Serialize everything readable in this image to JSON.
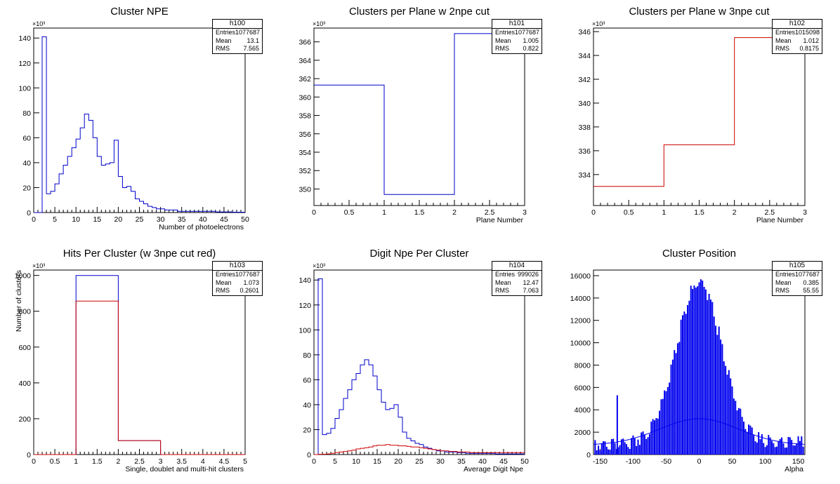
{
  "chart_data": [
    {
      "type": "histogram",
      "title": "Cluster NPE",
      "xlabel": "Number of photoelectrons",
      "ylabel": "",
      "xlim": [
        0,
        50
      ],
      "ylim": [
        0,
        148
      ],
      "xticks": [
        0,
        5,
        10,
        15,
        20,
        25,
        30,
        35,
        40,
        45,
        50
      ],
      "yticks": [
        0,
        20,
        40,
        60,
        80,
        100,
        120,
        140
      ],
      "exponent": "×10³",
      "stats": {
        "name": "h100",
        "rows": [
          [
            "Entries",
            "1077687"
          ],
          [
            "Mean",
            "13.1"
          ],
          [
            "RMS",
            "7.565"
          ]
        ]
      },
      "series": [
        {
          "color": "#0000cc",
          "bin_width": 1,
          "x0": 0,
          "values": [
            0,
            0,
            141,
            15,
            17,
            23,
            31,
            38,
            45,
            52,
            59,
            68,
            79,
            74,
            60,
            45,
            38,
            39,
            40,
            58,
            29,
            20,
            21,
            17,
            11,
            9,
            7,
            5,
            4,
            3,
            3,
            2,
            2,
            2,
            1,
            1,
            1,
            1,
            1,
            1,
            1,
            1,
            1,
            0.5,
            0.5,
            0.5,
            0.5,
            0.3,
            0.3,
            0.3
          ]
        }
      ]
    },
    {
      "type": "histogram",
      "title": "Clusters per Plane w 2npe cut",
      "xlabel": "Plane Number",
      "ylabel": "",
      "xlim": [
        0,
        3
      ],
      "ylim": [
        348.2,
        367.5
      ],
      "xticks": [
        0,
        0.5,
        1,
        1.5,
        2,
        2.5,
        3
      ],
      "yticks": [
        350,
        352,
        354,
        356,
        358,
        360,
        362,
        364,
        366
      ],
      "exponent": "×10³",
      "stats": {
        "name": "h101",
        "rows": [
          [
            "Entries",
            "1077687"
          ],
          [
            "Mean",
            "1.005"
          ],
          [
            "RMS",
            "0.822"
          ]
        ]
      },
      "series": [
        {
          "color": "#0000cc",
          "bin_width": 1,
          "x0": 0,
          "values": [
            361.3,
            349.4,
            366.9
          ]
        }
      ]
    },
    {
      "type": "histogram",
      "title": "Clusters per Plane w 3npe cut",
      "xlabel": "Plane Number",
      "ylabel": "",
      "xlim": [
        0,
        3
      ],
      "ylim": [
        331.4,
        346.3
      ],
      "xticks": [
        0,
        0.5,
        1,
        1.5,
        2,
        2.5,
        3
      ],
      "yticks": [
        334,
        336,
        338,
        340,
        342,
        344,
        346
      ],
      "exponent": "×10³",
      "stats": {
        "name": "h102",
        "rows": [
          [
            "Entries",
            "1015098"
          ],
          [
            "Mean",
            "1.012"
          ],
          [
            "RMS",
            "0.8175"
          ]
        ]
      },
      "series": [
        {
          "color": "#cc0000",
          "bin_width": 1,
          "x0": 0,
          "values": [
            333.0,
            336.5,
            345.5
          ]
        }
      ]
    },
    {
      "type": "histogram",
      "title": "Hits Per Cluster (w 3npe cut red)",
      "xlabel": "Single, doublet and multi-hit clusters",
      "ylabel": "Number of clusters",
      "xlim": [
        0,
        5
      ],
      "ylim": [
        0,
        1030
      ],
      "xticks": [
        0,
        0.5,
        1,
        1.5,
        2,
        2.5,
        3,
        3.5,
        4,
        4.5,
        5
      ],
      "yticks": [
        0,
        200,
        400,
        600,
        800,
        1000
      ],
      "exponent": "×10³",
      "stats": {
        "name": "h103",
        "rows": [
          [
            "Entries",
            "1077687"
          ],
          [
            "Mean",
            "1.073"
          ],
          [
            "RMS",
            "0.2601"
          ]
        ]
      },
      "series": [
        {
          "color": "#0000cc",
          "bin_width": 1,
          "x0": 0,
          "values": [
            0,
            1000,
            78,
            0,
            0
          ]
        },
        {
          "color": "#cc0000",
          "bin_width": 1,
          "x0": 0,
          "values": [
            0,
            857,
            78,
            0,
            0
          ]
        }
      ]
    },
    {
      "type": "histogram",
      "title": "Digit Npe Per Cluster",
      "xlabel": "Average Digit Npe",
      "ylabel": "",
      "xlim": [
        0,
        50
      ],
      "ylim": [
        0,
        148
      ],
      "xticks": [
        0,
        5,
        10,
        15,
        20,
        25,
        30,
        35,
        40,
        45,
        50
      ],
      "yticks": [
        0,
        20,
        40,
        60,
        80,
        100,
        120,
        140
      ],
      "exponent": "×10³",
      "stats": {
        "name": "h104",
        "rows": [
          [
            "Entries",
            "999026"
          ],
          [
            "Mean",
            "12.47"
          ],
          [
            "RMS",
            "7.063"
          ]
        ]
      },
      "series": [
        {
          "color": "#0000cc",
          "bin_width": 1,
          "x0": 0,
          "values": [
            0,
            141,
            16,
            17,
            21,
            29,
            36,
            45,
            52,
            60,
            65,
            72,
            76,
            72,
            63,
            52,
            42,
            36,
            37,
            40,
            30,
            18,
            13,
            11,
            9,
            8,
            6,
            5,
            4,
            3,
            3,
            2,
            2,
            2,
            1.5,
            1.5,
            1,
            1,
            1,
            1,
            1,
            1,
            1,
            0.5,
            0.5,
            0.5,
            0.5,
            0.5,
            0.5,
            0.5
          ]
        },
        {
          "color": "#cc0000",
          "bin_width": 1,
          "x0": 0,
          "values": [
            0,
            0.2,
            0.3,
            0.5,
            1,
            1.5,
            2,
            2.5,
            3,
            3.5,
            4.5,
            5,
            5.5,
            6,
            7,
            7.5,
            7.5,
            8,
            7.5,
            7.5,
            7,
            7,
            6.5,
            6,
            6,
            5.5,
            5,
            4.5,
            4,
            3.5,
            3,
            3,
            2.5,
            2.5,
            2,
            2,
            2,
            1.5,
            1.5,
            1.5,
            1.5,
            1.5,
            1.5,
            1.5,
            1.5,
            1.5,
            1.5,
            1.5,
            1.5,
            1.5
          ]
        }
      ]
    },
    {
      "type": "histogram",
      "title": "Cluster Position",
      "xlabel": "Alpha",
      "ylabel": "",
      "xlim": [
        -160,
        160
      ],
      "ylim": [
        0,
        16500
      ],
      "xticks": [
        -150,
        -100,
        -50,
        0,
        50,
        100,
        150
      ],
      "yticks": [
        0,
        2000,
        4000,
        6000,
        8000,
        10000,
        12000,
        14000,
        16000
      ],
      "exponent": "",
      "stats": {
        "name": "h105",
        "rows": [
          [
            "Entries",
            "1077687"
          ],
          [
            "Mean",
            "0.385"
          ],
          [
            "RMS",
            "55.55"
          ]
        ]
      },
      "series": [
        {
          "color": "#0000ee",
          "style": "comb",
          "peak": 15700,
          "center": 0,
          "sigma": 34,
          "baseline": 1300,
          "low": 850,
          "spike_x": -124,
          "spike_y": 5300
        }
      ]
    }
  ]
}
